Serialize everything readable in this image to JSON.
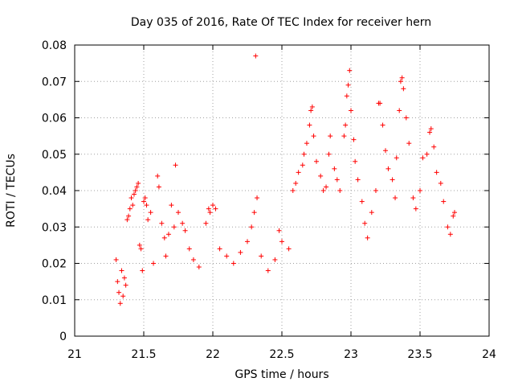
{
  "chart_data": {
    "type": "scatter",
    "title": "Day 035 of 2016, Rate Of TEC Index for receiver hern",
    "xlabel": "GPS time / hours",
    "ylabel": "ROTI / TECUs",
    "xlim": [
      21,
      24
    ],
    "ylim": [
      0,
      0.08
    ],
    "x_ticks": [
      21,
      21.5,
      22,
      22.5,
      23,
      23.5,
      24
    ],
    "x_tick_labels": [
      "21",
      "21.5",
      "22",
      "22.5",
      "23",
      "23.5",
      "24"
    ],
    "y_ticks": [
      0,
      0.01,
      0.02,
      0.03,
      0.04,
      0.05,
      0.06,
      0.07,
      0.08
    ],
    "y_tick_labels": [
      "0",
      "0.01",
      "0.02",
      "0.03",
      "0.04",
      "0.05",
      "0.06",
      "0.07",
      "0.08"
    ],
    "grid": true,
    "marker": "+",
    "marker_color": "#ff0000",
    "series": [
      {
        "name": "hern",
        "points": [
          [
            21.3,
            0.021
          ],
          [
            21.31,
            0.015
          ],
          [
            21.32,
            0.012
          ],
          [
            21.33,
            0.009
          ],
          [
            21.34,
            0.018
          ],
          [
            21.35,
            0.011
          ],
          [
            21.36,
            0.016
          ],
          [
            21.37,
            0.014
          ],
          [
            21.38,
            0.032
          ],
          [
            21.39,
            0.033
          ],
          [
            21.4,
            0.035
          ],
          [
            21.41,
            0.038
          ],
          [
            21.42,
            0.036
          ],
          [
            21.43,
            0.039
          ],
          [
            21.44,
            0.04
          ],
          [
            21.45,
            0.041
          ],
          [
            21.46,
            0.042
          ],
          [
            21.47,
            0.025
          ],
          [
            21.48,
            0.024
          ],
          [
            21.49,
            0.018
          ],
          [
            21.5,
            0.037
          ],
          [
            21.51,
            0.038
          ],
          [
            21.52,
            0.036
          ],
          [
            21.53,
            0.032
          ],
          [
            21.55,
            0.034
          ],
          [
            21.57,
            0.02
          ],
          [
            21.6,
            0.044
          ],
          [
            21.61,
            0.041
          ],
          [
            21.63,
            0.031
          ],
          [
            21.65,
            0.027
          ],
          [
            21.66,
            0.022
          ],
          [
            21.68,
            0.028
          ],
          [
            21.7,
            0.036
          ],
          [
            21.72,
            0.03
          ],
          [
            21.73,
            0.047
          ],
          [
            21.75,
            0.034
          ],
          [
            21.78,
            0.031
          ],
          [
            21.8,
            0.029
          ],
          [
            21.83,
            0.024
          ],
          [
            21.86,
            0.021
          ],
          [
            21.9,
            0.019
          ],
          [
            21.95,
            0.031
          ],
          [
            21.97,
            0.035
          ],
          [
            21.98,
            0.034
          ],
          [
            22.0,
            0.036
          ],
          [
            22.02,
            0.035
          ],
          [
            22.05,
            0.024
          ],
          [
            22.1,
            0.022
          ],
          [
            22.15,
            0.02
          ],
          [
            22.2,
            0.023
          ],
          [
            22.25,
            0.026
          ],
          [
            22.28,
            0.03
          ],
          [
            22.3,
            0.034
          ],
          [
            22.31,
            0.077
          ],
          [
            22.32,
            0.038
          ],
          [
            22.35,
            0.022
          ],
          [
            22.4,
            0.018
          ],
          [
            22.45,
            0.021
          ],
          [
            22.48,
            0.029
          ],
          [
            22.5,
            0.026
          ],
          [
            22.55,
            0.024
          ],
          [
            22.58,
            0.04
          ],
          [
            22.6,
            0.042
          ],
          [
            22.62,
            0.045
          ],
          [
            22.65,
            0.047
          ],
          [
            22.66,
            0.05
          ],
          [
            22.68,
            0.053
          ],
          [
            22.7,
            0.058
          ],
          [
            22.71,
            0.062
          ],
          [
            22.72,
            0.063
          ],
          [
            22.73,
            0.055
          ],
          [
            22.75,
            0.048
          ],
          [
            22.78,
            0.044
          ],
          [
            22.8,
            0.04
          ],
          [
            22.82,
            0.041
          ],
          [
            22.84,
            0.05
          ],
          [
            22.85,
            0.055
          ],
          [
            22.88,
            0.046
          ],
          [
            22.9,
            0.043
          ],
          [
            22.92,
            0.04
          ],
          [
            22.95,
            0.055
          ],
          [
            22.96,
            0.058
          ],
          [
            22.97,
            0.066
          ],
          [
            22.98,
            0.069
          ],
          [
            22.99,
            0.073
          ],
          [
            23.0,
            0.062
          ],
          [
            23.02,
            0.054
          ],
          [
            23.03,
            0.048
          ],
          [
            23.05,
            0.043
          ],
          [
            23.08,
            0.037
          ],
          [
            23.1,
            0.031
          ],
          [
            23.12,
            0.027
          ],
          [
            23.15,
            0.034
          ],
          [
            23.18,
            0.04
          ],
          [
            23.2,
            0.064
          ],
          [
            23.21,
            0.064
          ],
          [
            23.23,
            0.058
          ],
          [
            23.25,
            0.051
          ],
          [
            23.27,
            0.046
          ],
          [
            23.3,
            0.043
          ],
          [
            23.32,
            0.038
          ],
          [
            23.33,
            0.049
          ],
          [
            23.35,
            0.062
          ],
          [
            23.36,
            0.07
          ],
          [
            23.37,
            0.071
          ],
          [
            23.38,
            0.068
          ],
          [
            23.4,
            0.06
          ],
          [
            23.42,
            0.053
          ],
          [
            23.45,
            0.038
          ],
          [
            23.47,
            0.035
          ],
          [
            23.5,
            0.04
          ],
          [
            23.52,
            0.049
          ],
          [
            23.55,
            0.05
          ],
          [
            23.57,
            0.056
          ],
          [
            23.58,
            0.057
          ],
          [
            23.6,
            0.052
          ],
          [
            23.62,
            0.045
          ],
          [
            23.65,
            0.042
          ],
          [
            23.67,
            0.037
          ],
          [
            23.7,
            0.03
          ],
          [
            23.72,
            0.028
          ],
          [
            23.74,
            0.033
          ],
          [
            23.75,
            0.034
          ]
        ]
      }
    ]
  }
}
